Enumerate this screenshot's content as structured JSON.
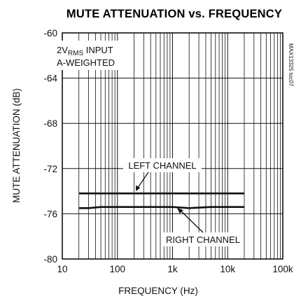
{
  "chart_data": {
    "type": "line",
    "title": "MUTE ATTENUATION vs. FREQUENCY",
    "xlabel": "FREQUENCY (Hz)",
    "ylabel": "MUTE ATTENUATION (dB)",
    "x_scale": "log",
    "xlim": [
      10,
      100000
    ],
    "ylim": [
      -80,
      -60
    ],
    "grid": true,
    "x_ticks": [
      {
        "value": 10,
        "label": "10"
      },
      {
        "value": 100,
        "label": "100"
      },
      {
        "value": 1000,
        "label": "1k"
      },
      {
        "value": 10000,
        "label": "10k"
      },
      {
        "value": 100000,
        "label": "100k"
      }
    ],
    "y_ticks": [
      {
        "value": -60,
        "label": "-60"
      },
      {
        "value": -64,
        "label": "-64"
      },
      {
        "value": -68,
        "label": "-68"
      },
      {
        "value": -72,
        "label": "-72"
      },
      {
        "value": -76,
        "label": "-76"
      },
      {
        "value": -80,
        "label": "-80"
      }
    ],
    "series": [
      {
        "name": "LEFT CHANNEL",
        "x": [
          20,
          30,
          50,
          100,
          200,
          500,
          1000,
          2000,
          5000,
          10000,
          20000
        ],
        "y": [
          -74.2,
          -74.2,
          -74.2,
          -74.2,
          -74.2,
          -74.2,
          -74.2,
          -74.2,
          -74.2,
          -74.2,
          -74.2
        ]
      },
      {
        "name": "RIGHT CHANNEL",
        "x": [
          20,
          30,
          50,
          100,
          200,
          500,
          1000,
          2000,
          5000,
          10000,
          20000
        ],
        "y": [
          -75.5,
          -75.5,
          -75.4,
          -75.4,
          -75.4,
          -75.4,
          -75.4,
          -75.5,
          -75.4,
          -75.4,
          -75.4
        ]
      }
    ],
    "annotations": {
      "input_prefix": "2V",
      "input_subscript": "RMS",
      "input_suffix": " INPUT",
      "weighting": "A-WEIGHTED",
      "left_label": "LEFT CHANNEL",
      "right_label": "RIGHT CHANNEL",
      "figure_code": "MAX13325 toc07"
    }
  }
}
